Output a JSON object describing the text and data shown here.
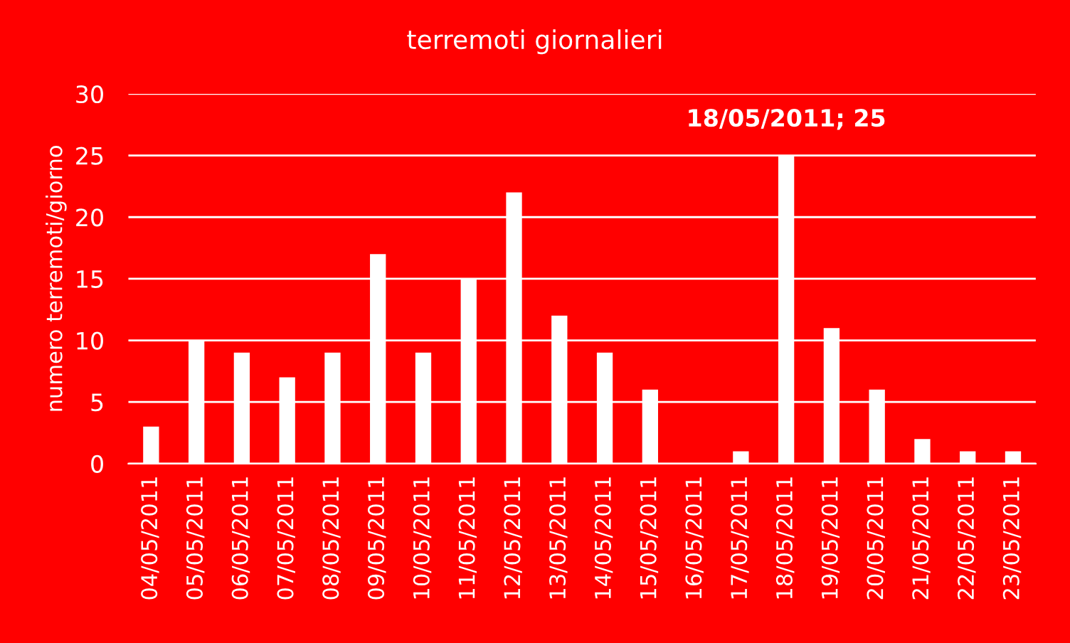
{
  "chart_data": {
    "type": "bar",
    "title": "terremoti giornalieri",
    "ylabel": "numero terremoti/giorno",
    "categories": [
      "04/05/2011",
      "05/05/2011",
      "06/05/2011",
      "07/05/2011",
      "08/05/2011",
      "09/05/2011",
      "10/05/2011",
      "11/05/2011",
      "12/05/2011",
      "13/05/2011",
      "14/05/2011",
      "15/05/2011",
      "16/05/2011",
      "17/05/2011",
      "18/05/2011",
      "19/05/2011",
      "20/05/2011",
      "21/05/2011",
      "22/05/2011",
      "23/05/2011"
    ],
    "values": [
      3,
      10,
      9,
      7,
      9,
      17,
      9,
      15,
      22,
      12,
      9,
      6,
      0,
      1,
      25,
      11,
      6,
      2,
      1,
      1
    ],
    "color": "#ffffff",
    "ylim": [
      0,
      30
    ],
    "yticks": [
      0,
      5,
      10,
      15,
      20,
      25,
      30
    ],
    "grid": "y",
    "legend": false,
    "annotations": [
      {
        "text": "18/05/2011; 25",
        "x": "18/05/2011",
        "y": 25
      }
    ]
  }
}
